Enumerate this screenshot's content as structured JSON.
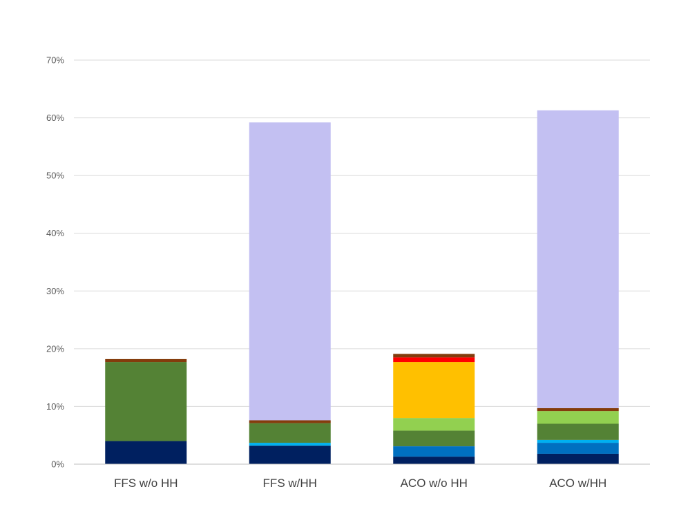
{
  "chart_data": {
    "type": "bar",
    "stacked": true,
    "title": "",
    "xlabel": "",
    "ylabel": "",
    "ylim": [
      0,
      70
    ],
    "y_ticks": [
      0,
      10,
      20,
      30,
      40,
      50,
      60,
      70
    ],
    "y_tick_format": "percent",
    "grid": true,
    "legend": "none",
    "categories": [
      "FFS w/o HH",
      "FFS w/HH",
      "ACO w/o HH",
      "ACO w/HH"
    ],
    "series": [
      {
        "color": "#002060",
        "values": [
          4.0,
          3.2,
          1.3,
          1.8
        ]
      },
      {
        "color": "#0070C0",
        "values": [
          0.0,
          0.0,
          1.8,
          1.9
        ]
      },
      {
        "color": "#00B0F0",
        "values": [
          0.0,
          0.5,
          0.0,
          0.5
        ]
      },
      {
        "color": "#548235",
        "values": [
          13.7,
          3.4,
          2.7,
          2.8
        ]
      },
      {
        "color": "#92D050",
        "values": [
          0.0,
          0.0,
          2.2,
          2.2
        ]
      },
      {
        "color": "#FFC000",
        "values": [
          0.0,
          0.0,
          9.7,
          0.0
        ]
      },
      {
        "color": "#FF0000",
        "values": [
          0.0,
          0.0,
          0.8,
          0.0
        ]
      },
      {
        "color": "#843C0C",
        "values": [
          0.5,
          0.5,
          0.6,
          0.5
        ]
      },
      {
        "color": "#C3C0F2",
        "values": [
          0.0,
          51.6,
          0.0,
          51.6
        ]
      }
    ]
  }
}
